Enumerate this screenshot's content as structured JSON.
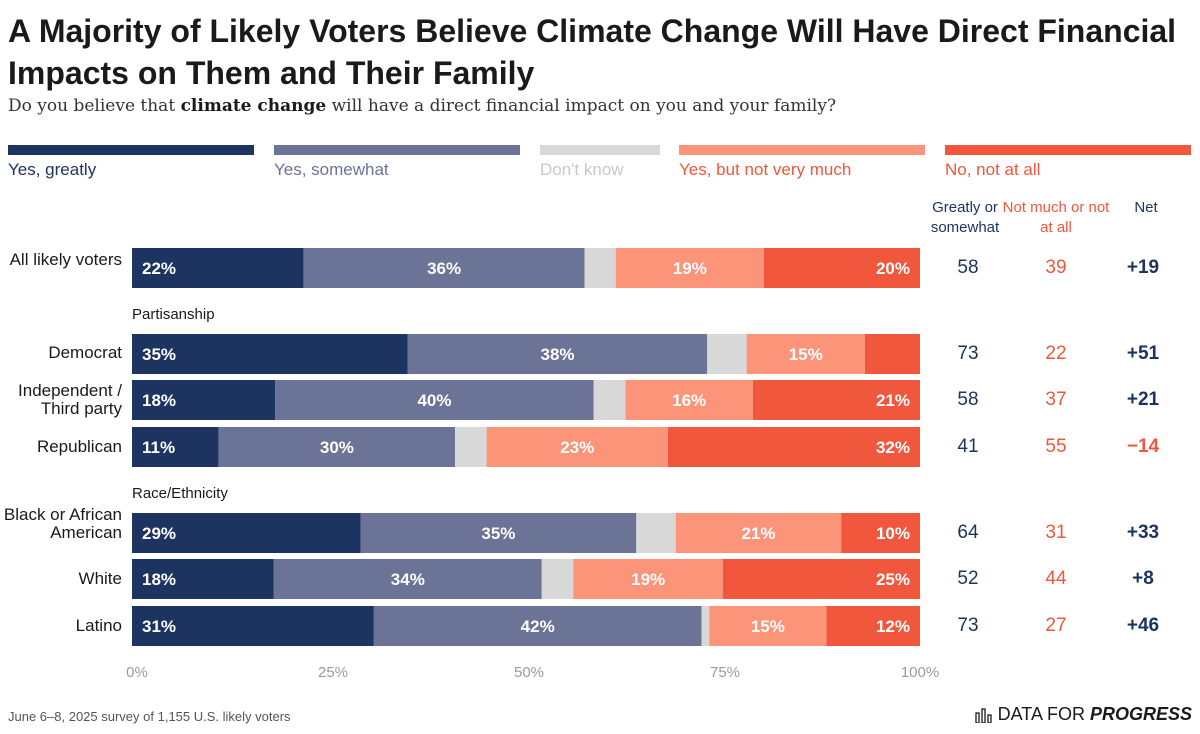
{
  "header": {
    "title": "A Majority of Likely Voters Believe Climate Change Will Have Direct Financial Impacts on Them and Their Family",
    "subtitle_pre": "Do you believe that ",
    "subtitle_bold": "climate change",
    "subtitle_post": " will have a direct financial impact on you and your family?"
  },
  "legend": [
    {
      "label": "Yes, greatly",
      "color": "#1d3461"
    },
    {
      "label": "Yes, somewhat",
      "color": "#6b7396"
    },
    {
      "label": "Don't know",
      "color": "#d8d8d8"
    },
    {
      "label": "Yes, but not very much",
      "color": "#fb9479"
    },
    {
      "label": "No, not at all",
      "color": "#f0573c"
    }
  ],
  "columns": {
    "greatly_somewhat": "Greatly or somewhat",
    "not_much": "Not much or not at all",
    "net": "Net"
  },
  "groups": {
    "partisanship": "Partisanship",
    "race": "Race/Ethnicity"
  },
  "chart_data": {
    "type": "bar",
    "orientation": "horizontal",
    "stacked": true,
    "title": "A Majority of Likely Voters Believe Climate Change Will Have Direct Financial Impacts on Them and Their Family",
    "xlim": [
      0,
      100
    ],
    "x_ticks": [
      "0%",
      "25%",
      "50%",
      "75%",
      "100%"
    ],
    "series_names": [
      "Yes, greatly",
      "Yes, somewhat",
      "Don't know",
      "Yes, but not very much",
      "No, not at all"
    ],
    "rows": [
      {
        "label": "All likely voters",
        "values": [
          22,
          36,
          4,
          19,
          20
        ],
        "labels": [
          "22%",
          "36%",
          "",
          "19%",
          "20%"
        ]
      },
      {
        "label": "Democrat",
        "values": [
          35,
          38,
          5,
          15,
          7
        ],
        "labels": [
          "35%",
          "38%",
          "",
          "15%",
          ""
        ]
      },
      {
        "label": "Independent / Third party",
        "values": [
          18,
          40,
          4,
          16,
          21
        ],
        "labels": [
          "18%",
          "40%",
          "",
          "16%",
          "21%"
        ]
      },
      {
        "label": "Republican",
        "values": [
          11,
          30,
          4,
          23,
          32
        ],
        "labels": [
          "11%",
          "30%",
          "",
          "23%",
          "32%"
        ]
      },
      {
        "label": "Black or African American",
        "values": [
          29,
          35,
          5,
          21,
          10
        ],
        "labels": [
          "29%",
          "35%",
          "",
          "21%",
          "10%"
        ]
      },
      {
        "label": "White",
        "values": [
          18,
          34,
          4,
          19,
          25
        ],
        "labels": [
          "18%",
          "34%",
          "",
          "19%",
          "25%"
        ]
      },
      {
        "label": "Latino",
        "values": [
          31,
          42,
          1,
          15,
          12
        ],
        "labels": [
          "31%",
          "42%",
          "",
          "15%",
          "12%"
        ]
      }
    ]
  },
  "stats": [
    {
      "greatly": "58",
      "not_much": "39",
      "net": "+19",
      "net_color": "#1d3461"
    },
    {
      "greatly": "73",
      "not_much": "22",
      "net": "+51",
      "net_color": "#1d3461"
    },
    {
      "greatly": "58",
      "not_much": "37",
      "net": "+21",
      "net_color": "#1d3461"
    },
    {
      "greatly": "41",
      "not_much": "55",
      "net": "−14",
      "net_color": "#f0573c"
    },
    {
      "greatly": "64",
      "not_much": "31",
      "net": "+33",
      "net_color": "#1d3461"
    },
    {
      "greatly": "52",
      "not_much": "44",
      "net": "+8",
      "net_color": "#1d3461"
    },
    {
      "greatly": "73",
      "not_much": "27",
      "net": "+46",
      "net_color": "#1d3461"
    }
  ],
  "footer": {
    "source": "June 6–8, 2025 survey of 1,155 U.S. likely voters",
    "logo_regular": "DATA FOR ",
    "logo_bold": "PROGRESS"
  }
}
